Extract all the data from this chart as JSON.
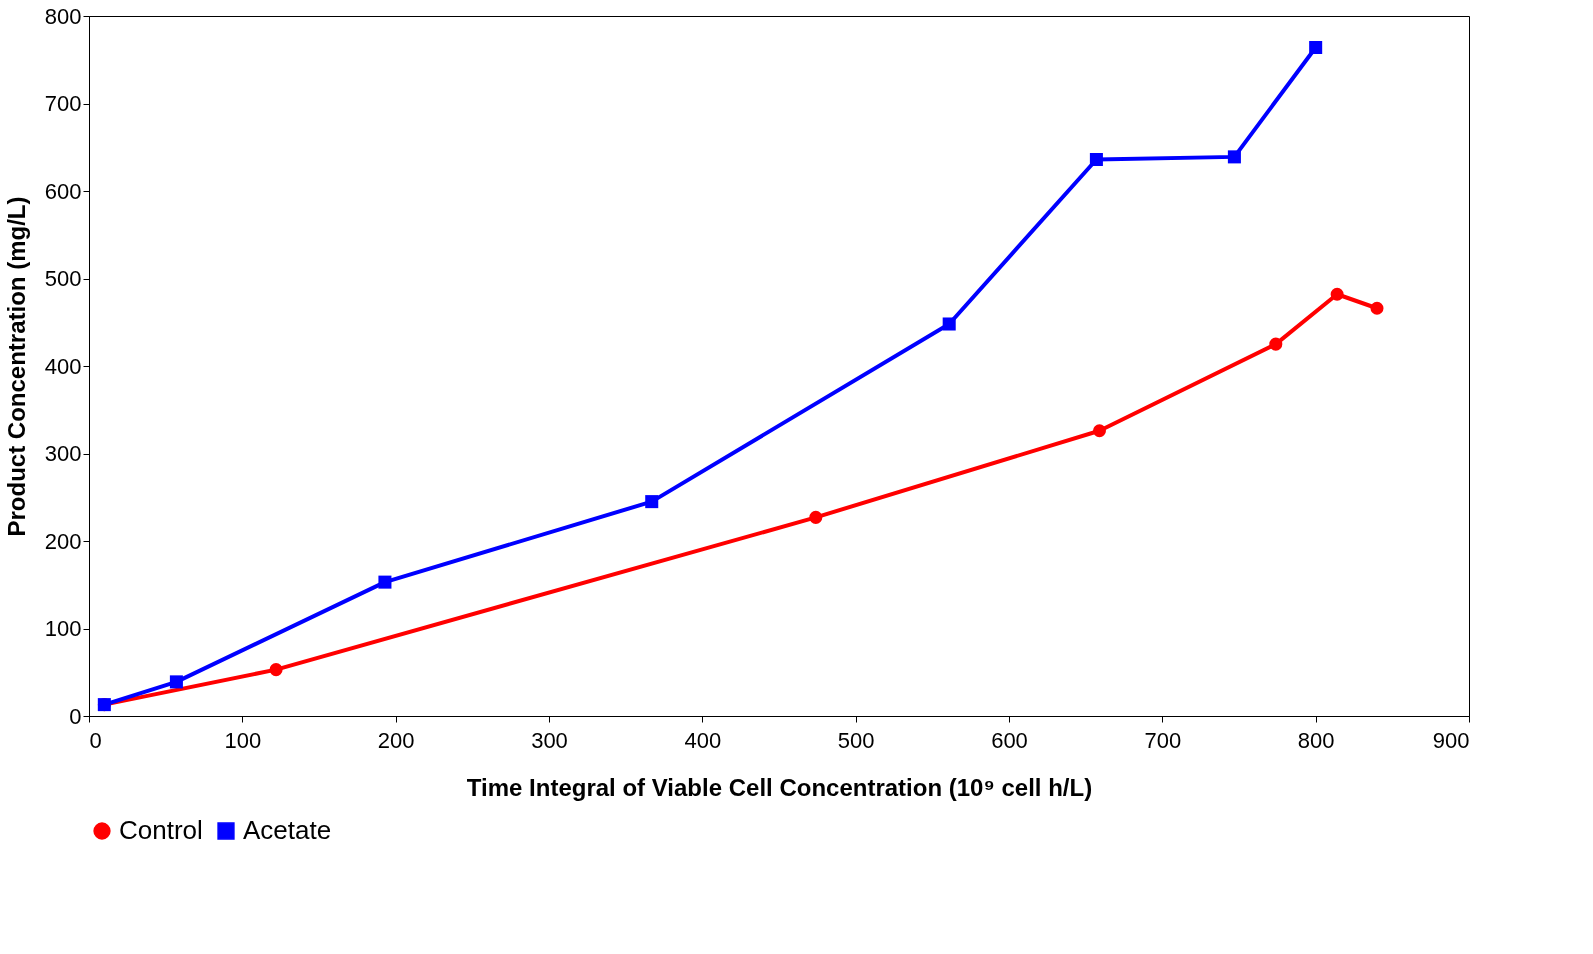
{
  "chart_data": {
    "type": "line",
    "xlabel": "Time Integral of Viable Cell Concentration (10⁹ cell h/L)",
    "ylabel": "Product Concentration (mg/L)",
    "xlim": [
      0,
      900
    ],
    "xticks": [
      0,
      100,
      200,
      300,
      400,
      500,
      600,
      700,
      800,
      900
    ],
    "ylim": [
      0,
      800
    ],
    "yticks": [
      0,
      100,
      200,
      300,
      400,
      500,
      600,
      700,
      800
    ],
    "grid": false,
    "legend": "bottom",
    "line_style": "solid",
    "series": [
      {
        "name": "Control",
        "color": "#ff0000",
        "marker": "circle",
        "x": [
          10,
          122,
          474,
          659,
          774,
          814,
          840
        ],
        "values": [
          13,
          53,
          227,
          326,
          425,
          482,
          466
        ]
      },
      {
        "name": "Acetate",
        "color": "#0000ff",
        "marker": "square",
        "x": [
          10,
          57,
          193,
          367,
          561,
          657,
          747,
          800
        ],
        "values": [
          13,
          39,
          153,
          245,
          448,
          636,
          639,
          764
        ]
      }
    ]
  }
}
